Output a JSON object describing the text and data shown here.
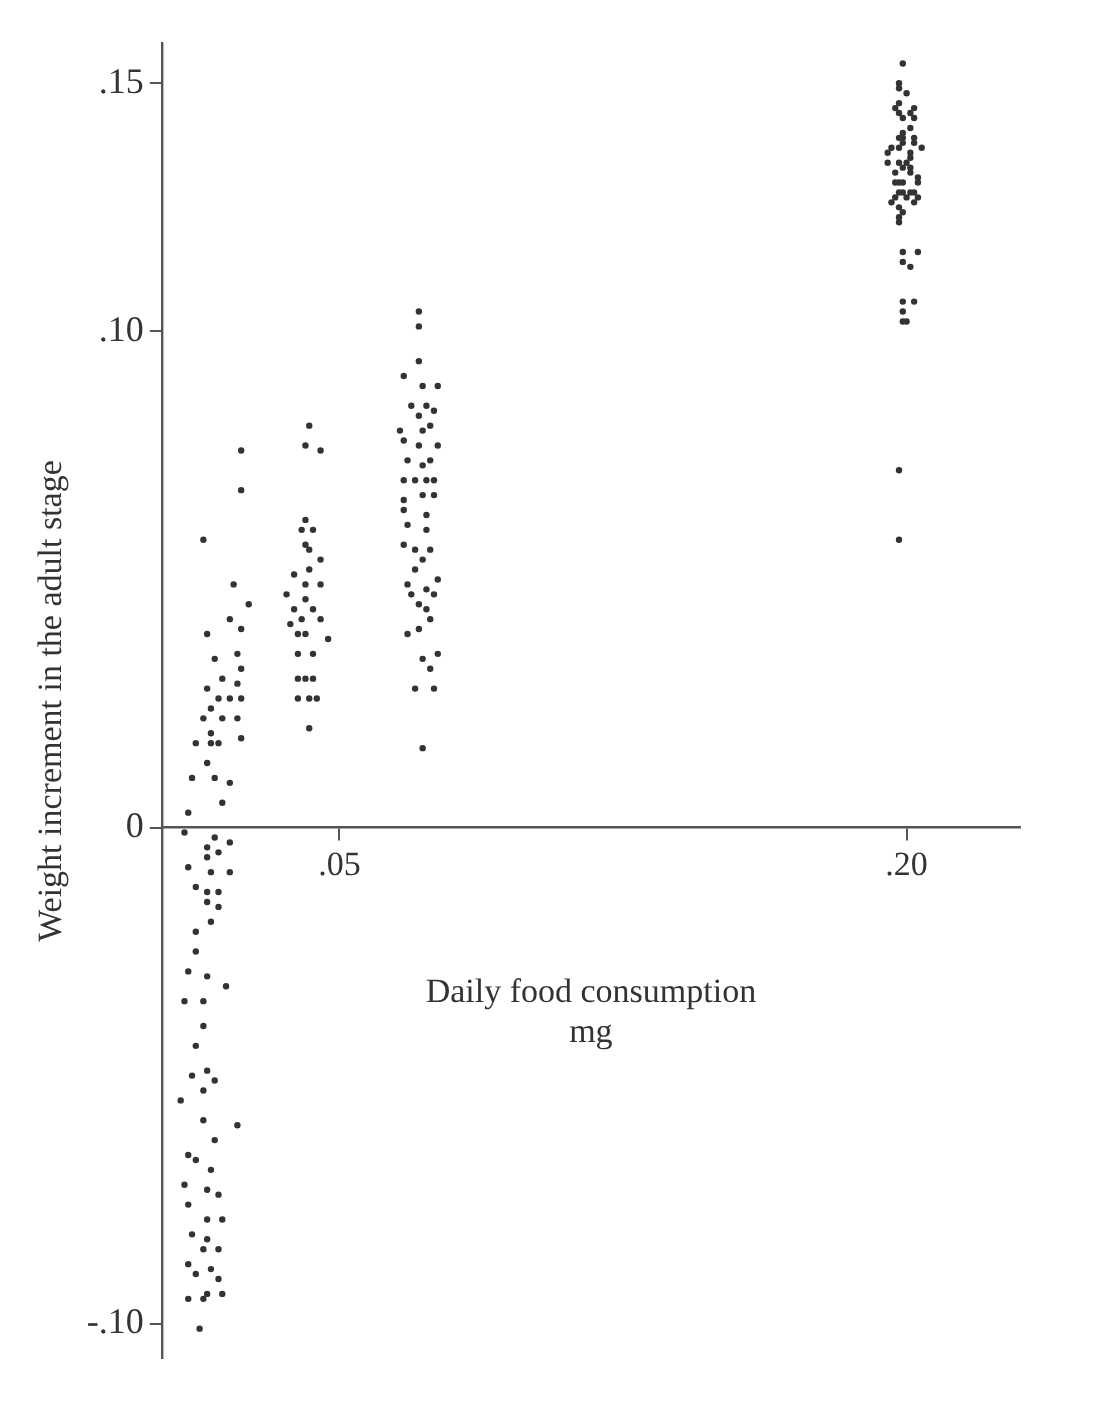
{
  "chart_data": {
    "type": "scatter",
    "xlabel": "Daily food consumption\nmg",
    "ylabel": "Weight increment in the adult stage",
    "xlim": [
      0.003,
      0.23
    ],
    "ylim": [
      -0.107,
      0.158
    ],
    "xticks": [
      {
        "value": 0.05,
        "label": ".05"
      },
      {
        "value": 0.2,
        "label": ".20"
      }
    ],
    "yticks": [
      {
        "value": -0.1,
        "label": "-.10"
      },
      0,
      {
        "value": 0.1,
        "label": ".10"
      },
      {
        "value": 0.15,
        "label": ".15"
      }
    ],
    "grid": false,
    "legend": false,
    "marker": "circle",
    "color": "#333333",
    "x": [
      0.024,
      0.024,
      0.014,
      0.022,
      0.026,
      0.021,
      0.024,
      0.015,
      0.017,
      0.023,
      0.024,
      0.015,
      0.019,
      0.023,
      0.018,
      0.021,
      0.024,
      0.016,
      0.014,
      0.019,
      0.023,
      0.016,
      0.012,
      0.016,
      0.018,
      0.024,
      0.015,
      0.011,
      0.017,
      0.021,
      0.019,
      0.01,
      0.009,
      0.015,
      0.017,
      0.021,
      0.018,
      0.01,
      0.015,
      0.016,
      0.021,
      0.012,
      0.015,
      0.018,
      0.018,
      0.015,
      0.016,
      0.012,
      0.012,
      0.01,
      0.015,
      0.02,
      0.009,
      0.014,
      0.014,
      0.012,
      0.011,
      0.015,
      0.017,
      0.014,
      0.008,
      0.014,
      0.023,
      0.017,
      0.01,
      0.012,
      0.016,
      0.009,
      0.015,
      0.018,
      0.01,
      0.015,
      0.019,
      0.011,
      0.015,
      0.014,
      0.018,
      0.01,
      0.012,
      0.016,
      0.018,
      0.015,
      0.01,
      0.014,
      0.019,
      0.013,
      0.042,
      0.041,
      0.045,
      0.041,
      0.04,
      0.043,
      0.041,
      0.042,
      0.042,
      0.045,
      0.038,
      0.041,
      0.045,
      0.036,
      0.041,
      0.038,
      0.043,
      0.037,
      0.04,
      0.045,
      0.039,
      0.041,
      0.047,
      0.039,
      0.043,
      0.039,
      0.041,
      0.043,
      0.039,
      0.042,
      0.044,
      0.042,
      0.071,
      0.071,
      0.071,
      0.067,
      0.072,
      0.076,
      0.069,
      0.073,
      0.071,
      0.075,
      0.066,
      0.067,
      0.072,
      0.074,
      0.071,
      0.076,
      0.068,
      0.074,
      0.072,
      0.067,
      0.07,
      0.073,
      0.075,
      0.067,
      0.072,
      0.075,
      0.067,
      0.073,
      0.068,
      0.073,
      0.067,
      0.07,
      0.074,
      0.072,
      0.07,
      0.076,
      0.068,
      0.073,
      0.069,
      0.075,
      0.071,
      0.073,
      0.074,
      0.068,
      0.071,
      0.072,
      0.076,
      0.074,
      0.07,
      0.075,
      0.072,
      0.199,
      0.198,
      0.198,
      0.2,
      0.198,
      0.197,
      0.202,
      0.198,
      0.201,
      0.202,
      0.199,
      0.201,
      0.199,
      0.199,
      0.202,
      0.198,
      0.199,
      0.202,
      0.196,
      0.198,
      0.204,
      0.195,
      0.201,
      0.201,
      0.198,
      0.195,
      0.2,
      0.197,
      0.199,
      0.201,
      0.201,
      0.203,
      0.198,
      0.197,
      0.199,
      0.203,
      0.199,
      0.201,
      0.202,
      0.198,
      0.197,
      0.2,
      0.203,
      0.196,
      0.198,
      0.202,
      0.199,
      0.198,
      0.198,
      0.199,
      0.203,
      0.199,
      0.201,
      0.199,
      0.202,
      0.199,
      0.2,
      0.199,
      0.198,
      0.198
    ],
    "values": [
      0.076,
      0.068,
      0.058,
      0.049,
      0.045,
      0.042,
      0.04,
      0.039,
      0.034,
      0.035,
      0.032,
      0.028,
      0.03,
      0.029,
      0.026,
      0.026,
      0.026,
      0.024,
      0.022,
      0.022,
      0.022,
      0.019,
      0.017,
      0.017,
      0.017,
      0.018,
      0.013,
      0.01,
      0.01,
      0.009,
      0.005,
      0.003,
      -0.001,
      -0.004,
      -0.002,
      -0.003,
      -0.005,
      -0.008,
      -0.006,
      -0.009,
      -0.009,
      -0.012,
      -0.013,
      -0.013,
      -0.016,
      -0.015,
      -0.019,
      -0.021,
      -0.025,
      -0.029,
      -0.03,
      -0.032,
      -0.035,
      -0.035,
      -0.04,
      -0.044,
      -0.05,
      -0.049,
      -0.051,
      -0.053,
      -0.055,
      -0.059,
      -0.06,
      -0.063,
      -0.066,
      -0.067,
      -0.069,
      -0.072,
      -0.073,
      -0.074,
      -0.076,
      -0.079,
      -0.079,
      -0.082,
      -0.083,
      -0.085,
      -0.085,
      -0.088,
      -0.09,
      -0.089,
      -0.091,
      -0.094,
      -0.095,
      -0.095,
      -0.094,
      -0.101,
      0.081,
      0.077,
      0.076,
      0.062,
      0.06,
      0.06,
      0.057,
      0.056,
      0.052,
      0.054,
      0.051,
      0.049,
      0.049,
      0.047,
      0.046,
      0.044,
      0.044,
      0.041,
      0.042,
      0.042,
      0.039,
      0.039,
      0.038,
      0.035,
      0.035,
      0.03,
      0.03,
      0.03,
      0.026,
      0.026,
      0.026,
      0.02,
      0.104,
      0.101,
      0.094,
      0.091,
      0.089,
      0.089,
      0.085,
      0.085,
      0.083,
      0.084,
      0.08,
      0.078,
      0.08,
      0.081,
      0.077,
      0.077,
      0.074,
      0.074,
      0.073,
      0.07,
      0.07,
      0.07,
      0.07,
      0.066,
      0.067,
      0.067,
      0.064,
      0.063,
      0.061,
      0.06,
      0.057,
      0.056,
      0.056,
      0.054,
      0.052,
      0.05,
      0.049,
      0.048,
      0.047,
      0.047,
      0.045,
      0.044,
      0.042,
      0.039,
      0.04,
      0.034,
      0.035,
      0.032,
      0.028,
      0.028,
      0.016,
      0.154,
      0.15,
      0.149,
      0.148,
      0.146,
      0.145,
      0.145,
      0.144,
      0.144,
      0.143,
      0.143,
      0.141,
      0.14,
      0.139,
      0.139,
      0.139,
      0.138,
      0.138,
      0.137,
      0.137,
      0.137,
      0.136,
      0.136,
      0.135,
      0.134,
      0.134,
      0.134,
      0.132,
      0.133,
      0.133,
      0.132,
      0.131,
      0.13,
      0.13,
      0.13,
      0.13,
      0.128,
      0.128,
      0.128,
      0.128,
      0.127,
      0.127,
      0.127,
      0.126,
      0.125,
      0.126,
      0.124,
      0.123,
      0.122,
      0.116,
      0.116,
      0.114,
      0.113,
      0.106,
      0.106,
      0.104,
      0.102,
      0.102,
      0.072,
      0.058
    ]
  }
}
